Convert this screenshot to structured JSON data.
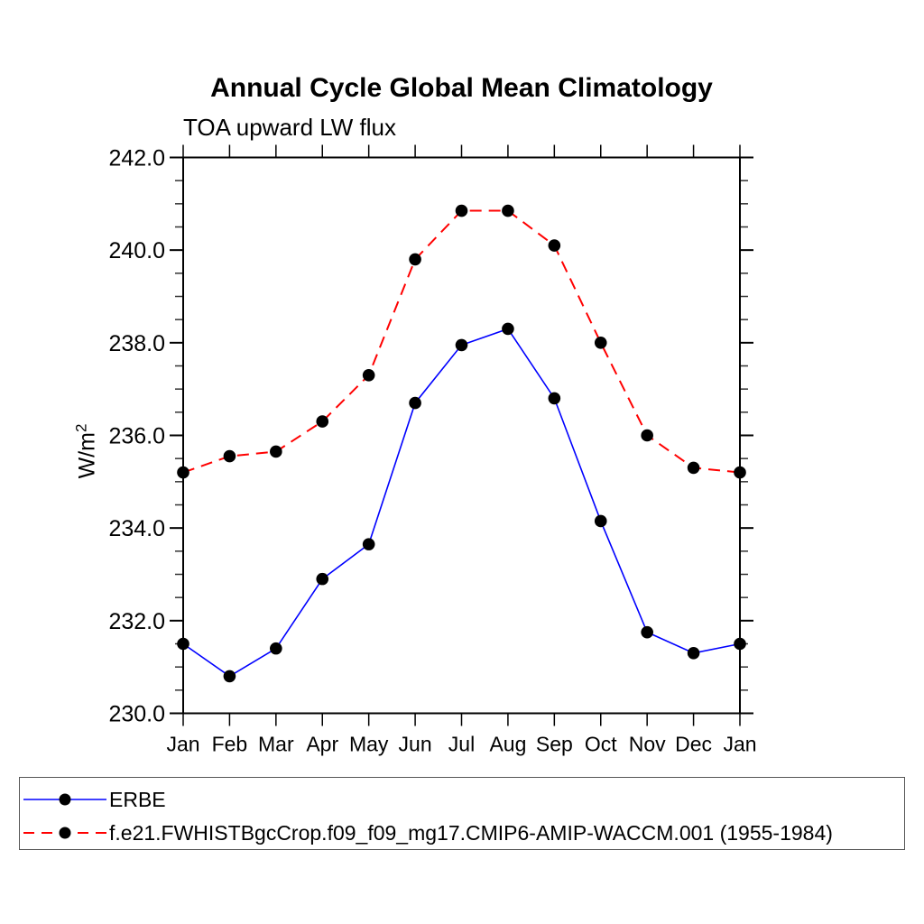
{
  "title": "Annual Cycle Global Mean Climatology",
  "subtitle": "TOA upward LW flux",
  "y_axis": {
    "label": "W/m",
    "label_superscript": "2"
  },
  "colors": {
    "background": "#ffffff",
    "axis": "#000000",
    "text": "#000000",
    "marker": "#000000",
    "erbe_line": "#0000ff",
    "model_line": "#ff0000",
    "legend_border": "#555555"
  },
  "chart_data": {
    "type": "line",
    "title": "Annual Cycle Global Mean Climatology",
    "subtitle": "TOA upward LW flux",
    "ylabel": "W/m^2",
    "xlabel": "",
    "x_categories": [
      "Jan",
      "Feb",
      "Mar",
      "Apr",
      "May",
      "Jun",
      "Jul",
      "Aug",
      "Sep",
      "Oct",
      "Nov",
      "Dec",
      "Jan"
    ],
    "ylim": [
      230.0,
      242.0
    ],
    "y_major_step": 2.0,
    "y_minor_step": 0.5,
    "y_tick_labels": [
      "230.0",
      "232.0",
      "234.0",
      "236.0",
      "238.0",
      "240.0",
      "242.0"
    ],
    "grid": false,
    "legend_position": "bottom",
    "series": [
      {
        "name": "ERBE",
        "color": "#0000ff",
        "line_style": "solid",
        "marker": "filled-circle",
        "marker_color": "#000000",
        "values": [
          231.5,
          230.8,
          231.4,
          232.9,
          233.65,
          236.7,
          237.95,
          238.3,
          236.8,
          234.15,
          231.75,
          231.3,
          231.5
        ]
      },
      {
        "name": "f.e21.FWHISTBgcCrop.f09_f09_mg17.CMIP6-AMIP-WACCM.001 (1955-1984)",
        "color": "#ff0000",
        "line_style": "dashed",
        "marker": "filled-circle",
        "marker_color": "#000000",
        "values": [
          235.2,
          235.55,
          235.65,
          236.3,
          237.3,
          239.8,
          240.85,
          240.85,
          240.1,
          238.0,
          236.0,
          235.3,
          235.2
        ]
      }
    ]
  }
}
